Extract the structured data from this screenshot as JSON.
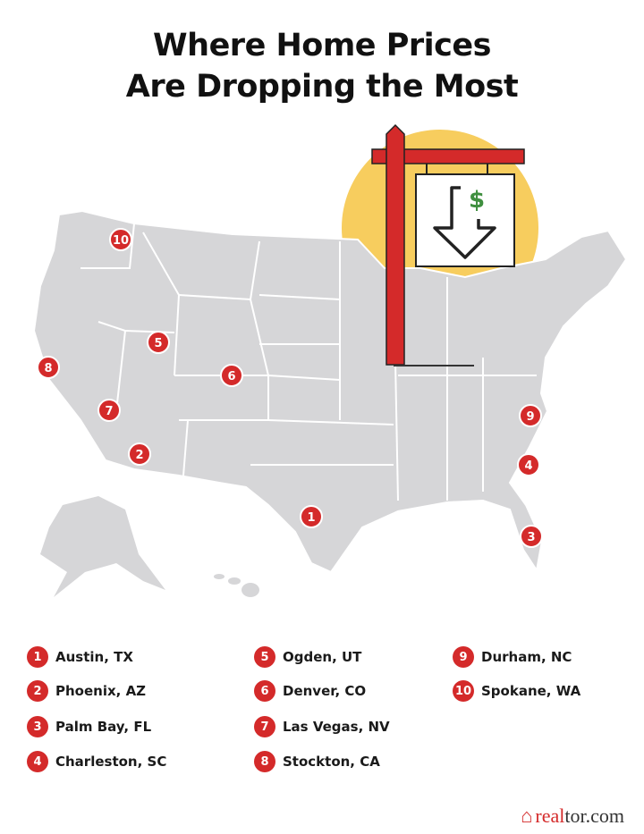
{
  "title_line1": "Where Home Prices",
  "title_line2": "Are Dropping the Most",
  "colors": {
    "marker": "#d42a2a",
    "map": "#d6d6d8",
    "sun": "#f7cd5e",
    "sign_post": "#d42a2a",
    "dollar": "#3f8f3f"
  },
  "sign": {
    "icon": "down-arrow-dollar-icon",
    "dollar_symbol": "$"
  },
  "cities": [
    {
      "rank": "1",
      "name": "Austin, TX"
    },
    {
      "rank": "2",
      "name": "Phoenix, AZ"
    },
    {
      "rank": "3",
      "name": "Palm Bay, FL"
    },
    {
      "rank": "4",
      "name": "Charleston, SC"
    },
    {
      "rank": "5",
      "name": "Ogden, UT"
    },
    {
      "rank": "6",
      "name": "Denver, CO"
    },
    {
      "rank": "7",
      "name": "Las Vegas, NV"
    },
    {
      "rank": "8",
      "name": "Stockton, CA"
    },
    {
      "rank": "9",
      "name": "Durham, NC"
    },
    {
      "rank": "10",
      "name": "Spokane, WA"
    }
  ],
  "logo": {
    "part1": "real",
    "part2": "tor.com"
  }
}
